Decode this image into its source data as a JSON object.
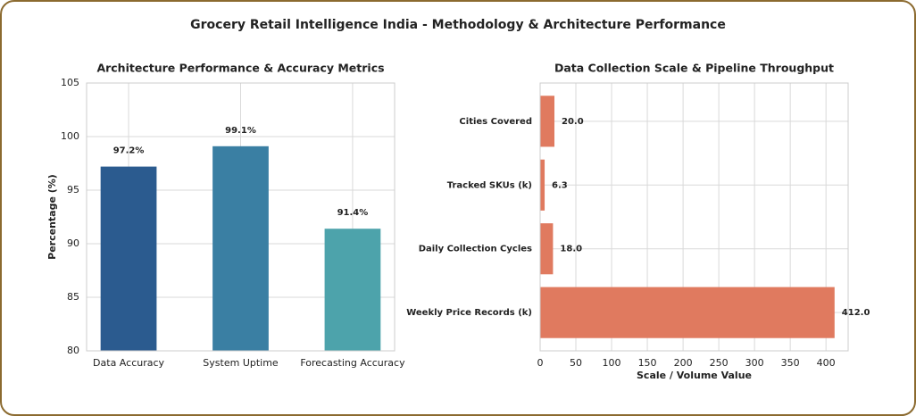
{
  "title": "Grocery Retail Intelligence India - Methodology & Architecture Performance",
  "chart_data": [
    {
      "type": "bar",
      "title": "Architecture Performance & Accuracy Metrics",
      "categories": [
        "Data Accuracy",
        "System Uptime",
        "Forecasting Accuracy"
      ],
      "values": [
        97.2,
        99.1,
        91.4
      ],
      "value_labels": [
        "97.2%",
        "99.1%",
        "91.4%"
      ],
      "colors": [
        "#2b5b8f",
        "#3a7fa3",
        "#4da3ab"
      ],
      "ylabel": "Percentage (%)",
      "ylim": [
        80,
        105
      ],
      "yticks": [
        80,
        85,
        90,
        95,
        100,
        105
      ],
      "grid": true
    },
    {
      "type": "barh",
      "title": "Data Collection Scale & Pipeline Throughput",
      "categories": [
        "Cities Covered",
        "Tracked SKUs (k)",
        "Daily Collection Cycles",
        "Weekly Price Records (k)"
      ],
      "values": [
        20.0,
        6.3,
        18.0,
        412.0
      ],
      "value_labels": [
        "20.0",
        "6.3",
        "18.0",
        "412.0"
      ],
      "color": "#e07a5f",
      "xlabel": "Scale / Volume Value",
      "xlim": [
        0,
        431
      ],
      "xticks": [
        0,
        50,
        100,
        150,
        200,
        250,
        300,
        350,
        400
      ],
      "grid": true
    }
  ]
}
